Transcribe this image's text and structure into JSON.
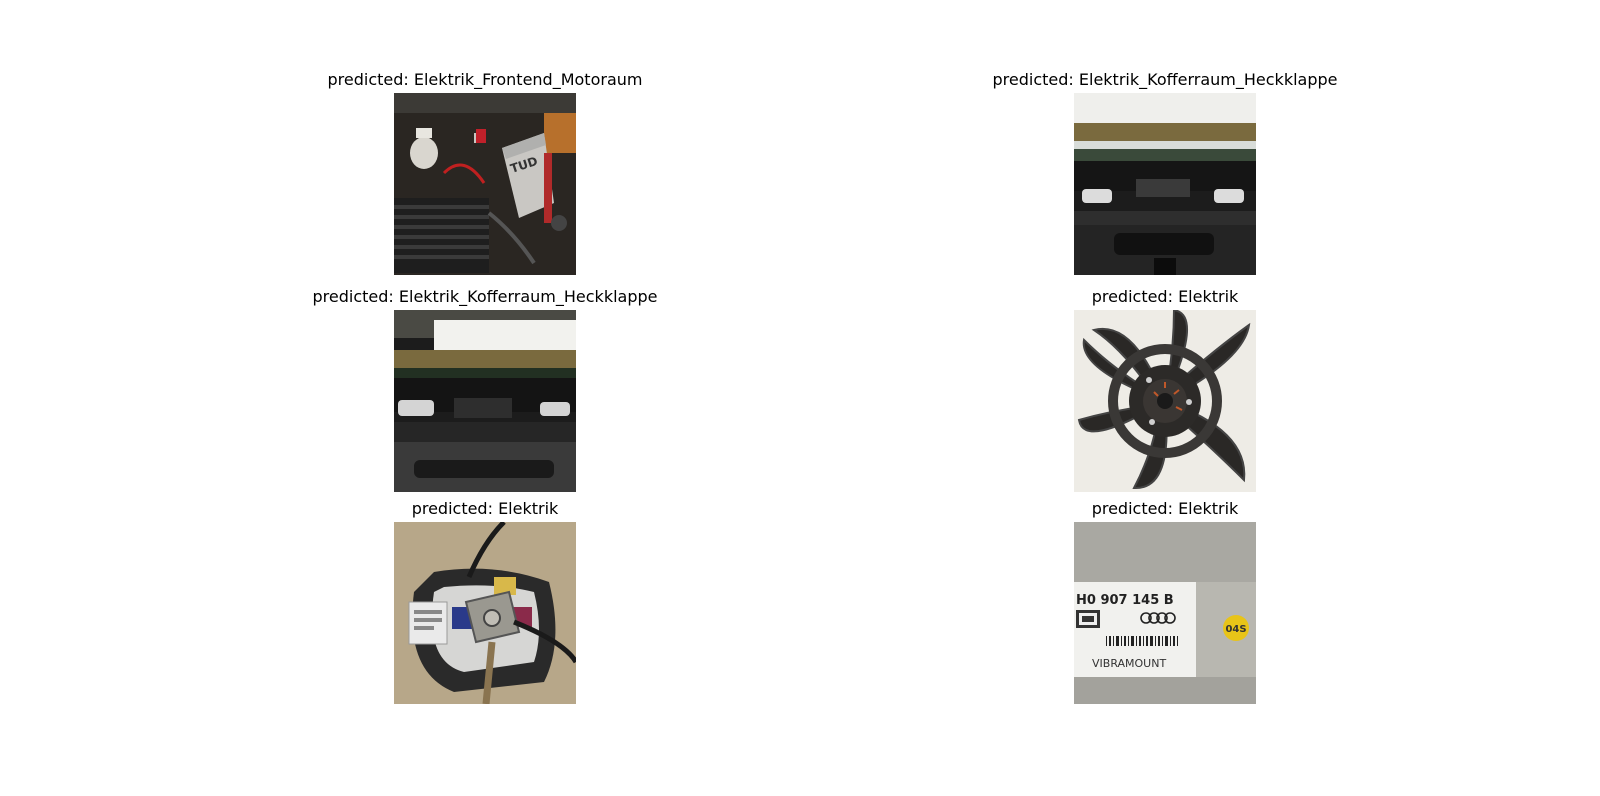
{
  "figure": {
    "panels": [
      {
        "title": "predicted: Elektrik_Frontend_Motoraum",
        "image": "engine-bay-photo"
      },
      {
        "title": "predicted: Elektrik_Kofferraum_Heckklappe",
        "image": "tailgate-light-photo"
      },
      {
        "title": "predicted: Elektrik_Kofferraum_Heckklappe",
        "image": "tailgate-light-photo"
      },
      {
        "title": "predicted: Elektrik",
        "image": "radiator-fan-photo"
      },
      {
        "title": "predicted: Elektrik",
        "image": "battery-terminal-photo"
      },
      {
        "title": "predicted: Elektrik",
        "image": "control-unit-label-photo",
        "image_text": {
          "part_number": "H0 907 145 B",
          "brand": "VIBRAMOUNT",
          "sticker": "04S"
        }
      }
    ]
  }
}
